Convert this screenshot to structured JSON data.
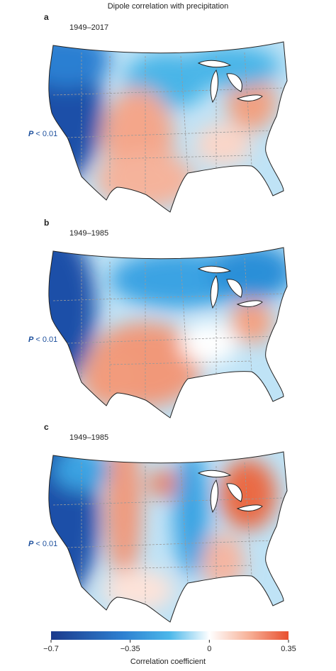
{
  "title": "Dipole correlation with precipitation",
  "panels": [
    {
      "letter": "a",
      "period": "1949–2017",
      "p_symbol": "P",
      "p_text": " < 0.01"
    },
    {
      "letter": "b",
      "period": "1949–1985",
      "p_symbol": "P",
      "p_text": " < 0.01"
    },
    {
      "letter": "c",
      "period": "1949–1985",
      "p_symbol": "P",
      "p_text": " < 0.01"
    }
  ],
  "colorbar": {
    "label": "Correlation coefficient",
    "lim": [
      -0.7,
      0.35
    ],
    "ticks": [
      {
        "value": -0.7,
        "label": "−0.7"
      },
      {
        "value": -0.35,
        "label": "−0.35"
      },
      0,
      0.35
    ]
  }
}
